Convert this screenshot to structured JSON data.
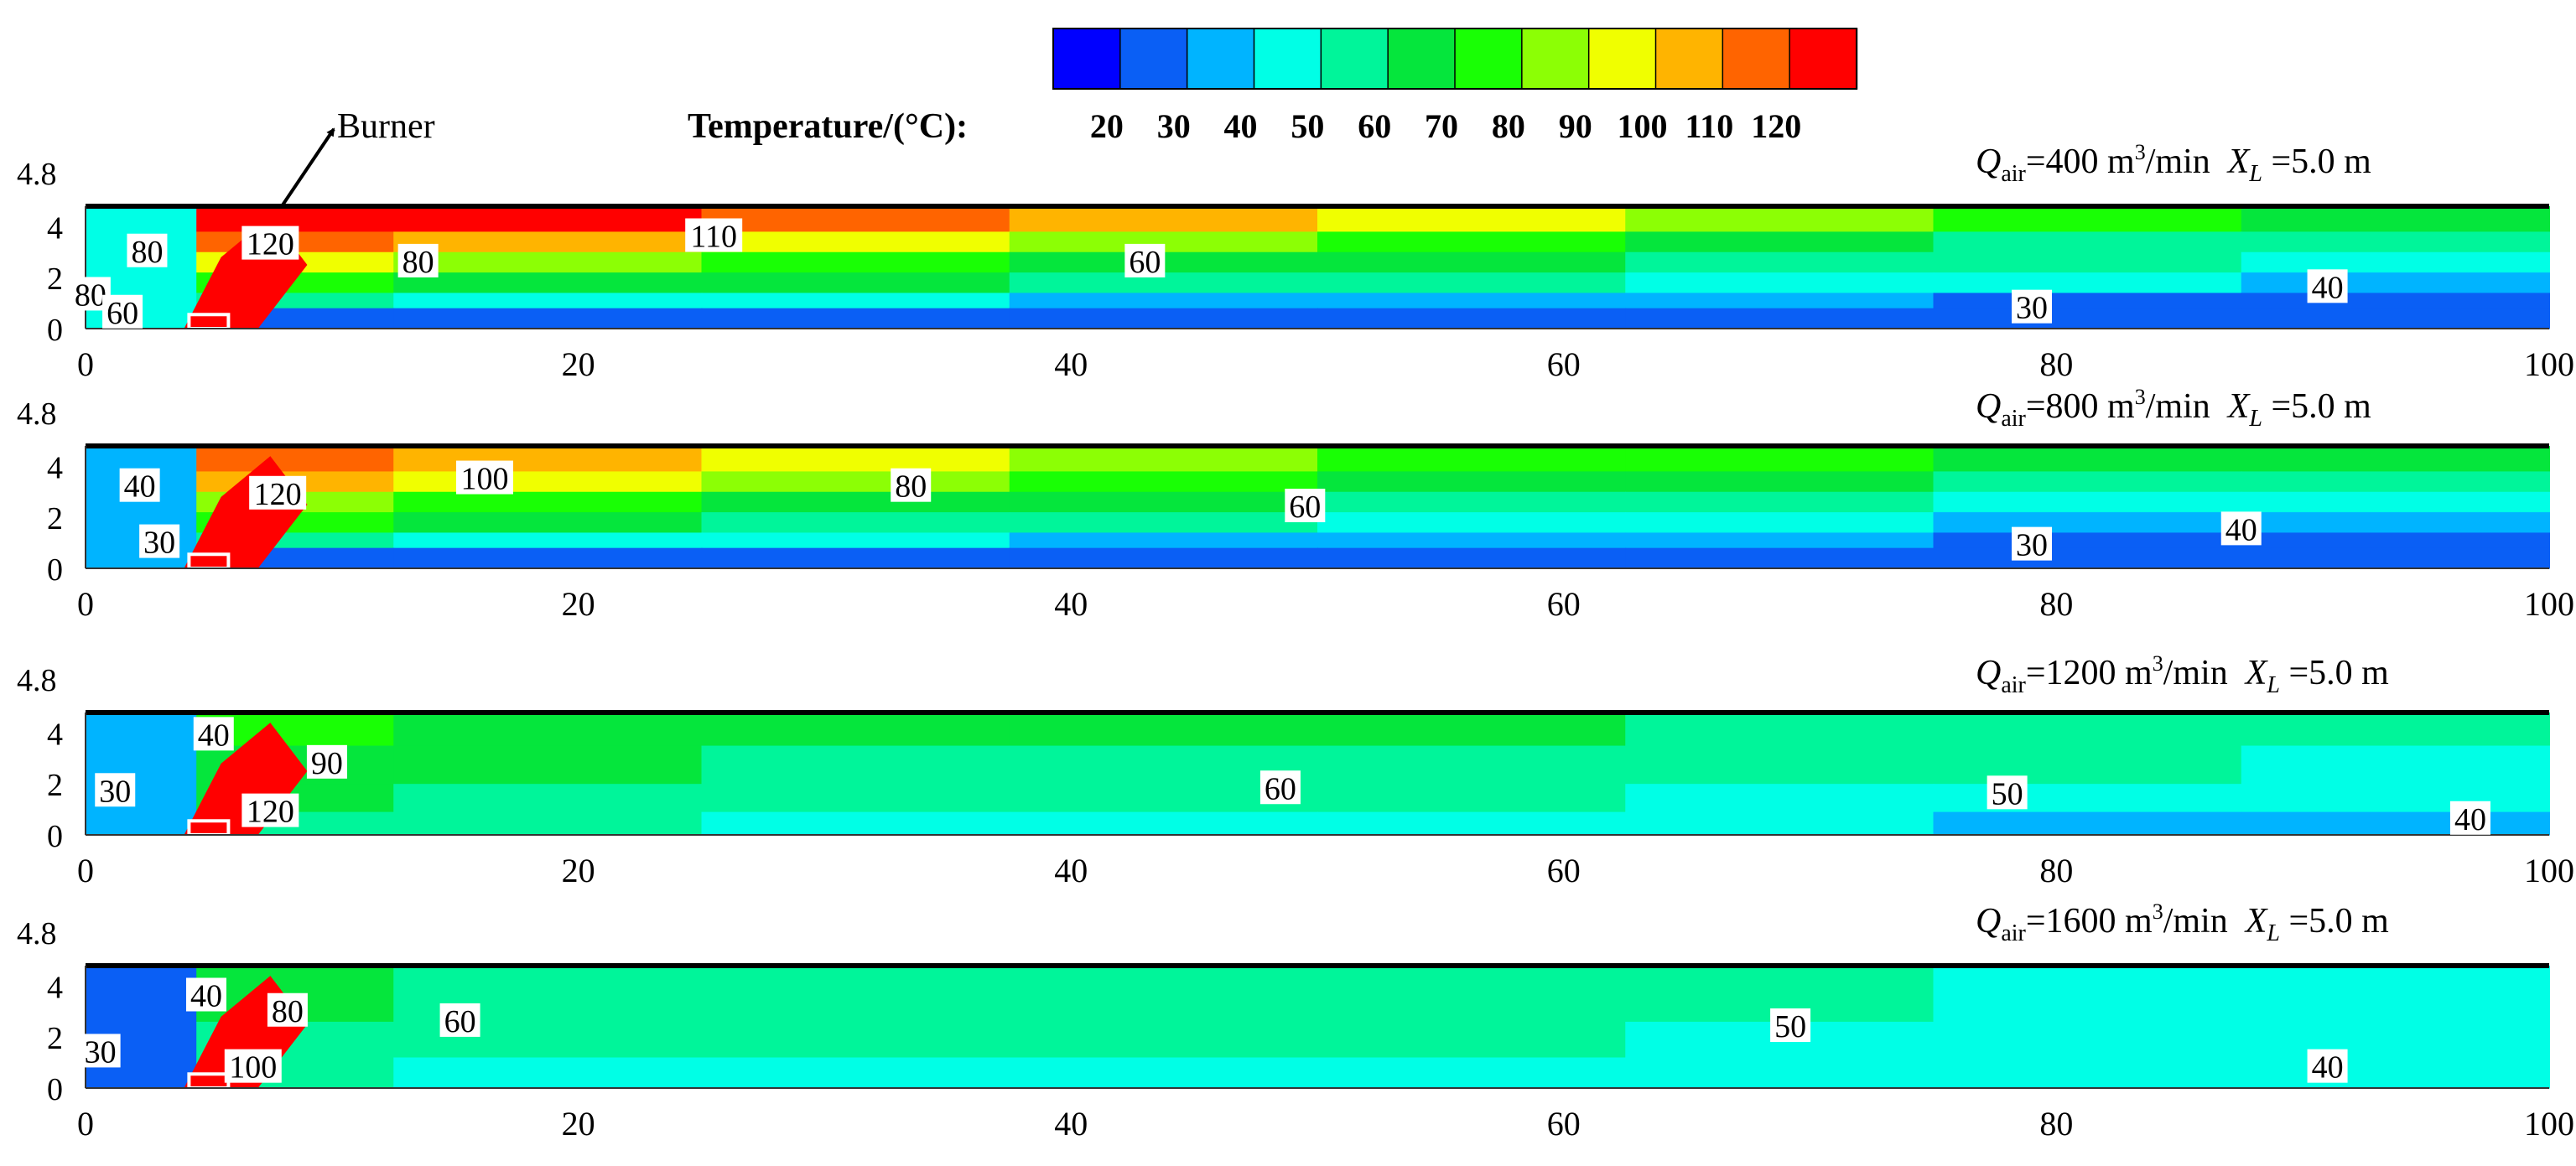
{
  "legend": {
    "title": "Temperature/(°C):",
    "labels": [
      "20",
      "30",
      "40",
      "50",
      "60",
      "70",
      "80",
      "90",
      "100",
      "110",
      "120"
    ],
    "colors": [
      "#0000ff",
      "#0a5ff5",
      "#00b4ff",
      "#00ffe6",
      "#00f59a",
      "#05e63c",
      "#19ff05",
      "#8cff05",
      "#f0ff00",
      "#ffb400",
      "#ff6400",
      "#ff0000"
    ]
  },
  "burner_label": "Burner",
  "chart_data": [
    {
      "type": "heatmap",
      "params": {
        "q_sym": "Q",
        "q_sub": "air",
        "q_value": "=400 m",
        "q_sup": "3",
        "q_unit": "/min",
        "x_sym": "X",
        "x_sub": "L",
        "x_value": " =5.0 m"
      },
      "xlim": [
        0,
        100
      ],
      "ylim": [
        0,
        4.8
      ],
      "x_ticks": [
        "0",
        "20",
        "40",
        "60",
        "80",
        "100"
      ],
      "y_ticks": [
        "0",
        "2",
        "4",
        "4.8"
      ],
      "color_field": {
        "left_region": "#00ffe6",
        "plume_color": "#ff0000",
        "layers": [
          {
            "top": 4.8,
            "colors": [
              "#ff0000",
              "#ff0000",
              "#ff6400",
              "#ffb400",
              "#f0ff00",
              "#8cff05",
              "#19ff05",
              "#05e63c"
            ]
          },
          {
            "top": 3.8,
            "colors": [
              "#ff6400",
              "#ffb400",
              "#f0ff00",
              "#8cff05",
              "#19ff05",
              "#05e63c",
              "#00f59a",
              "#00f59a"
            ]
          },
          {
            "top": 3.0,
            "colors": [
              "#f0ff00",
              "#8cff05",
              "#19ff05",
              "#05e63c",
              "#05e63c",
              "#00f59a",
              "#00f59a",
              "#00ffe6"
            ]
          },
          {
            "top": 2.2,
            "colors": [
              "#19ff05",
              "#05e63c",
              "#05e63c",
              "#00f59a",
              "#00f59a",
              "#00ffe6",
              "#00ffe6",
              "#00b4ff"
            ]
          },
          {
            "top": 1.4,
            "colors": [
              "#00f59a",
              "#00ffe6",
              "#00ffe6",
              "#00b4ff",
              "#00b4ff",
              "#00b4ff",
              "#0a5ff5",
              "#0a5ff5"
            ]
          },
          {
            "top": 0.8,
            "colors": [
              "#0a5ff5",
              "#0a5ff5",
              "#0a5ff5",
              "#0a5ff5",
              "#0a5ff5",
              "#0a5ff5",
              "#0a5ff5",
              "#0a5ff5"
            ]
          }
        ]
      },
      "contour_labels": [
        {
          "text": "80",
          "x": 2.5,
          "y": 3.0
        },
        {
          "text": "80",
          "x": 0.2,
          "y": 1.3
        },
        {
          "text": "60",
          "x": 1.5,
          "y": 0.6
        },
        {
          "text": "120",
          "x": 7.5,
          "y": 3.3
        },
        {
          "text": "80",
          "x": 13.5,
          "y": 2.6
        },
        {
          "text": "110",
          "x": 25.5,
          "y": 3.6
        },
        {
          "text": "60",
          "x": 43,
          "y": 2.6
        },
        {
          "text": "30",
          "x": 79,
          "y": 0.8
        },
        {
          "text": "40",
          "x": 91,
          "y": 1.6
        }
      ]
    },
    {
      "type": "heatmap",
      "params": {
        "q_sym": "Q",
        "q_sub": "air",
        "q_value": "=800 m",
        "q_sup": "3",
        "q_unit": "/min",
        "x_sym": "X",
        "x_sub": "L",
        "x_value": " =5.0 m"
      },
      "xlim": [
        0,
        100
      ],
      "ylim": [
        0,
        4.8
      ],
      "x_ticks": [
        "0",
        "20",
        "40",
        "60",
        "80",
        "100"
      ],
      "y_ticks": [
        "0",
        "2",
        "4",
        "4.8"
      ],
      "color_field": {
        "left_region": "#00b4ff",
        "plume_color": "#ff0000",
        "layers": [
          {
            "top": 4.8,
            "colors": [
              "#ff6400",
              "#ffb400",
              "#f0ff00",
              "#8cff05",
              "#19ff05",
              "#19ff05",
              "#05e63c",
              "#05e63c"
            ]
          },
          {
            "top": 3.8,
            "colors": [
              "#ffb400",
              "#f0ff00",
              "#8cff05",
              "#19ff05",
              "#05e63c",
              "#05e63c",
              "#00f59a",
              "#00f59a"
            ]
          },
          {
            "top": 3.0,
            "colors": [
              "#8cff05",
              "#19ff05",
              "#05e63c",
              "#05e63c",
              "#00f59a",
              "#00f59a",
              "#00ffe6",
              "#00ffe6"
            ]
          },
          {
            "top": 2.2,
            "colors": [
              "#19ff05",
              "#05e63c",
              "#00f59a",
              "#00f59a",
              "#00ffe6",
              "#00ffe6",
              "#00b4ff",
              "#00b4ff"
            ]
          },
          {
            "top": 1.4,
            "colors": [
              "#00f59a",
              "#00ffe6",
              "#00ffe6",
              "#00b4ff",
              "#00b4ff",
              "#00b4ff",
              "#0a5ff5",
              "#0a5ff5"
            ]
          },
          {
            "top": 0.8,
            "colors": [
              "#0a5ff5",
              "#0a5ff5",
              "#0a5ff5",
              "#0a5ff5",
              "#0a5ff5",
              "#0a5ff5",
              "#0a5ff5",
              "#0a5ff5"
            ]
          }
        ]
      },
      "contour_labels": [
        {
          "text": "40",
          "x": 2.2,
          "y": 3.2
        },
        {
          "text": "30",
          "x": 3.0,
          "y": 1.0
        },
        {
          "text": "120",
          "x": 7.8,
          "y": 2.9
        },
        {
          "text": "100",
          "x": 16.2,
          "y": 3.5
        },
        {
          "text": "80",
          "x": 33.5,
          "y": 3.2
        },
        {
          "text": "60",
          "x": 49.5,
          "y": 2.4
        },
        {
          "text": "30",
          "x": 79,
          "y": 0.9
        },
        {
          "text": "40",
          "x": 87.5,
          "y": 1.5
        }
      ]
    },
    {
      "type": "heatmap",
      "params": {
        "q_sym": "Q",
        "q_sub": "air",
        "q_value": "=1200 m",
        "q_sup": "3",
        "q_unit": "/min",
        "x_sym": "X",
        "x_sub": "L",
        "x_value": " =5.0 m"
      },
      "xlim": [
        0,
        100
      ],
      "ylim": [
        0,
        4.8
      ],
      "x_ticks": [
        "0",
        "20",
        "40",
        "60",
        "80",
        "100"
      ],
      "y_ticks": [
        "0",
        "2",
        "4",
        "4.8"
      ],
      "color_field": {
        "left_region": "#00b4ff",
        "plume_color": "#ff0000",
        "layers": [
          {
            "top": 4.8,
            "colors": [
              "#19ff05",
              "#05e63c",
              "#05e63c",
              "#05e63c",
              "#05e63c",
              "#00f59a",
              "#00f59a",
              "#00f59a"
            ]
          },
          {
            "top": 3.5,
            "colors": [
              "#05e63c",
              "#05e63c",
              "#00f59a",
              "#00f59a",
              "#00f59a",
              "#00f59a",
              "#00f59a",
              "#00ffe6"
            ]
          },
          {
            "top": 2.0,
            "colors": [
              "#05e63c",
              "#00f59a",
              "#00f59a",
              "#00f59a",
              "#00f59a",
              "#00ffe6",
              "#00ffe6",
              "#00ffe6"
            ]
          },
          {
            "top": 0.9,
            "colors": [
              "#00f59a",
              "#00f59a",
              "#00ffe6",
              "#00ffe6",
              "#00ffe6",
              "#00ffe6",
              "#00b4ff",
              "#00b4ff"
            ]
          }
        ]
      },
      "contour_labels": [
        {
          "text": "40",
          "x": 5.2,
          "y": 3.9
        },
        {
          "text": "90",
          "x": 9.8,
          "y": 2.8
        },
        {
          "text": "30",
          "x": 1.2,
          "y": 1.7
        },
        {
          "text": "120",
          "x": 7.5,
          "y": 0.9
        },
        {
          "text": "60",
          "x": 48.5,
          "y": 1.8
        },
        {
          "text": "50",
          "x": 78,
          "y": 1.6
        },
        {
          "text": "40",
          "x": 96.8,
          "y": 0.6
        }
      ]
    },
    {
      "type": "heatmap",
      "params": {
        "q_sym": "Q",
        "q_sub": "air",
        "q_value": "=1600 m",
        "q_sup": "3",
        "q_unit": "/min",
        "x_sym": "X",
        "x_sub": "L",
        "x_value": " =5.0 m"
      },
      "xlim": [
        0,
        100
      ],
      "ylim": [
        0,
        4.8
      ],
      "x_ticks": [
        "0",
        "20",
        "40",
        "60",
        "80",
        "100"
      ],
      "y_ticks": [
        "0",
        "2",
        "4",
        "4.8"
      ],
      "color_field": {
        "left_region": "#0a5ff5",
        "plume_color": "#ff0000",
        "layers": [
          {
            "top": 4.8,
            "colors": [
              "#05e63c",
              "#00f59a",
              "#00f59a",
              "#00f59a",
              "#00f59a",
              "#00f59a",
              "#00ffe6",
              "#00ffe6"
            ]
          },
          {
            "top": 2.6,
            "colors": [
              "#00f59a",
              "#00f59a",
              "#00f59a",
              "#00f59a",
              "#00f59a",
              "#00ffe6",
              "#00ffe6",
              "#00ffe6"
            ]
          },
          {
            "top": 1.2,
            "colors": [
              "#00f59a",
              "#00ffe6",
              "#00ffe6",
              "#00ffe6",
              "#00ffe6",
              "#00ffe6",
              "#00ffe6",
              "#00ffe6"
            ]
          }
        ]
      },
      "contour_labels": [
        {
          "text": "40",
          "x": 4.9,
          "y": 3.6
        },
        {
          "text": "80",
          "x": 8.2,
          "y": 3.0
        },
        {
          "text": "60",
          "x": 15.2,
          "y": 2.6
        },
        {
          "text": "30",
          "x": 0.6,
          "y": 1.4
        },
        {
          "text": "100",
          "x": 6.8,
          "y": 0.8
        },
        {
          "text": "50",
          "x": 69.2,
          "y": 2.4
        },
        {
          "text": "40",
          "x": 91,
          "y": 0.8
        }
      ]
    }
  ]
}
